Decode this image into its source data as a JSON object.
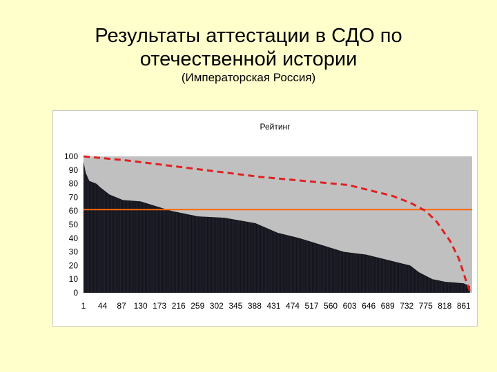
{
  "slide": {
    "title_line1": "Результаты аттестации в СДО по",
    "title_line2": "отечественной истории",
    "subtitle": "(Императорская Россия)"
  },
  "colors": {
    "background": "#ffffcc",
    "plot_area": "#c0c0c0",
    "bars": "#14141c",
    "threshold_line": "#ff6600",
    "curve": "#e02020"
  },
  "chart_data": {
    "type": "bar",
    "title": "Рейтинг",
    "xlabel": "",
    "ylabel": "",
    "ylim": [
      0,
      100
    ],
    "yticks": [
      0,
      10,
      20,
      30,
      40,
      50,
      60,
      70,
      80,
      90,
      100
    ],
    "xticks": [
      "1",
      "44",
      "87",
      "130",
      "173",
      "216",
      "259",
      "302",
      "345",
      "388",
      "431",
      "474",
      "517",
      "560",
      "603",
      "646",
      "689",
      "732",
      "775",
      "818",
      "861"
    ],
    "x_count": 880,
    "grid": false,
    "legend": "none",
    "series": [
      {
        "type": "bar",
        "profile": [
          [
            1,
            96
          ],
          [
            6,
            88
          ],
          [
            14,
            82
          ],
          [
            30,
            80
          ],
          [
            40,
            77
          ],
          [
            60,
            72
          ],
          [
            90,
            68
          ],
          [
            130,
            67
          ],
          [
            160,
            64
          ],
          [
            200,
            60
          ],
          [
            260,
            56
          ],
          [
            320,
            55
          ],
          [
            390,
            51
          ],
          [
            440,
            44
          ],
          [
            490,
            40
          ],
          [
            540,
            35
          ],
          [
            590,
            30
          ],
          [
            640,
            28
          ],
          [
            690,
            24
          ],
          [
            740,
            20
          ],
          [
            760,
            15
          ],
          [
            790,
            10
          ],
          [
            820,
            8
          ],
          [
            860,
            7
          ],
          [
            875,
            5
          ]
        ]
      },
      {
        "type": "line",
        "style": "dashed",
        "points": [
          [
            1,
            100
          ],
          [
            100,
            97
          ],
          [
            200,
            93
          ],
          [
            300,
            89
          ],
          [
            400,
            85
          ],
          [
            500,
            82
          ],
          [
            600,
            79
          ],
          [
            650,
            75
          ],
          [
            700,
            71
          ],
          [
            740,
            66
          ],
          [
            775,
            60
          ],
          [
            800,
            52
          ],
          [
            830,
            38
          ],
          [
            850,
            25
          ],
          [
            865,
            10
          ],
          [
            875,
            1
          ]
        ]
      },
      {
        "type": "line",
        "style": "solid",
        "value": 61
      }
    ]
  }
}
